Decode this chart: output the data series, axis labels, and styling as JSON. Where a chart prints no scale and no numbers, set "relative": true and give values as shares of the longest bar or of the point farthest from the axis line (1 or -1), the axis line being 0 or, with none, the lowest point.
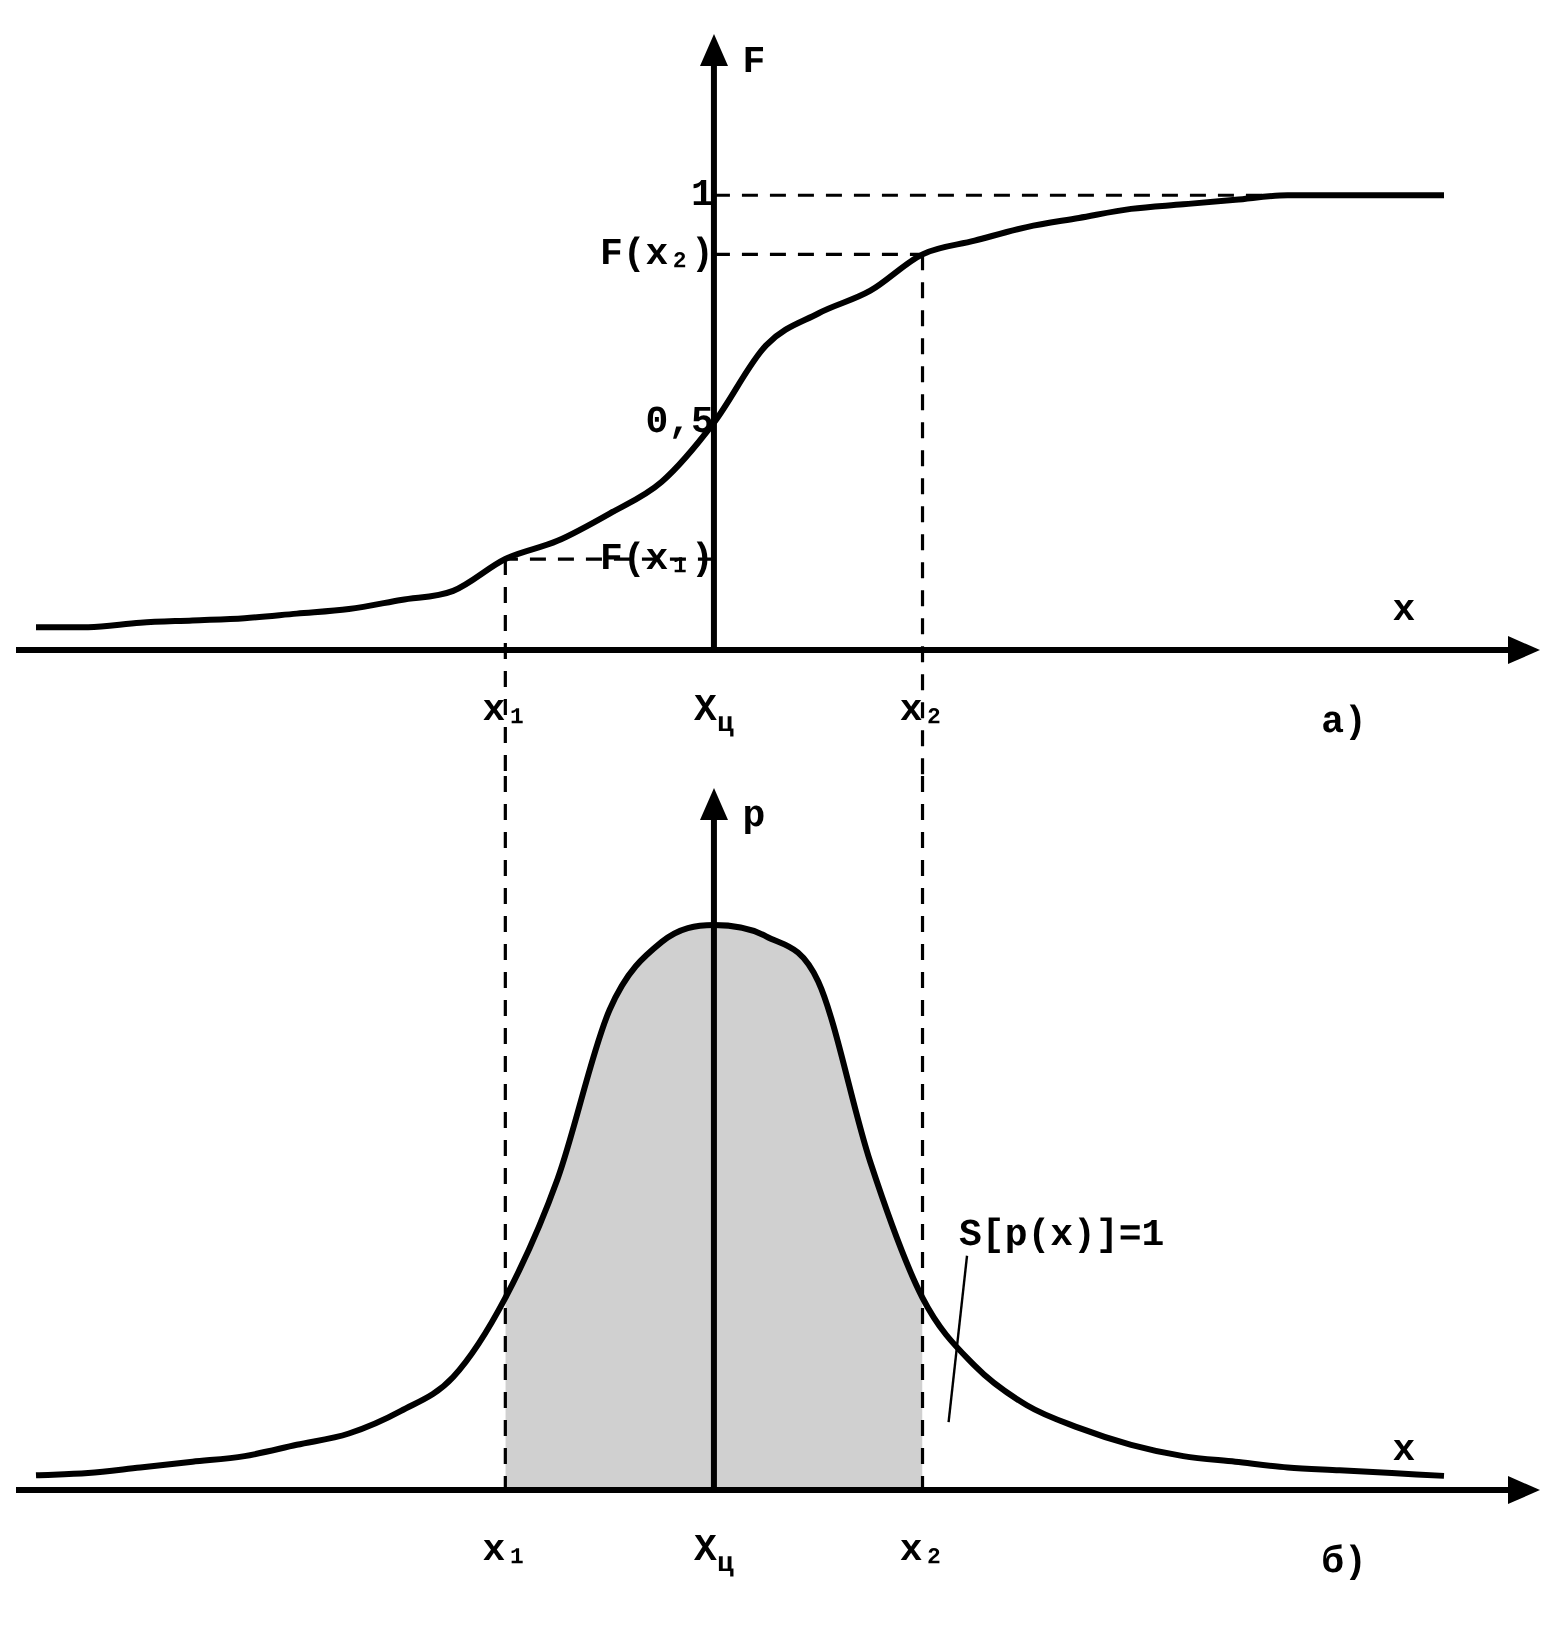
{
  "chart_data": [
    {
      "type": "line",
      "ylabel": "F",
      "xlabel": "x",
      "color": "#000000",
      "categories": [
        null,
        null,
        null,
        null,
        null,
        null,
        null,
        null,
        null,
        "x₁",
        null,
        null,
        null,
        "X$_{ц}$",
        null,
        null,
        null,
        "x₂",
        null,
        null,
        null,
        null,
        null,
        null,
        null,
        null,
        null,
        null
      ],
      "values": [
        0.05,
        0.05,
        0.06,
        0.065,
        0.07,
        0.08,
        0.09,
        0.11,
        0.13,
        0.2,
        0.24,
        0.3,
        0.37,
        0.5,
        0.67,
        0.74,
        0.79,
        0.87,
        0.9,
        0.93,
        0.95,
        0.97,
        0.98,
        0.99,
        1.0,
        1.0,
        1.0,
        1.0
      ],
      "ylim": [
        0,
        1.3
      ],
      "yticks": [
        {
          "value": 0.2,
          "label": "F(x₁)"
        },
        {
          "value": 0.5,
          "label": "0,5"
        },
        {
          "value": 0.87,
          "label": "F(x₂)"
        },
        1
      ],
      "ref_lines": [
        {
          "axis": "y",
          "value": 1,
          "line_style": "dashed"
        },
        {
          "axis": "y",
          "value": 0.87,
          "line_style": "dashed"
        },
        {
          "axis": "y",
          "value": 0.2,
          "line_style": "dashed"
        },
        {
          "axis": "x",
          "value": "x₁",
          "line_style": "dashed"
        },
        {
          "axis": "x",
          "value": "x₂",
          "line_style": "dashed"
        }
      ],
      "annotations": [
        "а)"
      ]
    },
    {
      "type": "line",
      "ylabel": "p",
      "xlabel": "x",
      "relative": true,
      "categories": [
        null,
        null,
        null,
        null,
        null,
        null,
        null,
        null,
        null,
        "x₁",
        null,
        null,
        null,
        "X$_{ц}$",
        null,
        null,
        null,
        "x₂",
        null,
        null,
        null,
        null,
        null,
        null,
        null,
        null,
        null,
        null
      ],
      "series": [
        {
          "color": "#000000",
          "values": [
            0.026,
            0.03,
            0.04,
            0.05,
            0.06,
            0.08,
            0.1,
            0.14,
            0.2,
            0.34,
            0.55,
            0.85,
            0.97,
            1,
            0.98,
            0.9,
            0.58,
            0.34,
            0.22,
            0.15,
            0.11,
            0.08,
            0.06,
            0.05,
            0.04,
            0.035,
            0.03,
            0.025
          ]
        },
        {
          "type": "area",
          "color": "#d0d0d0",
          "values": [
            null,
            null,
            null,
            null,
            null,
            null,
            null,
            null,
            null,
            0.34,
            0.55,
            0.85,
            0.97,
            1,
            0.98,
            0.9,
            0.58,
            0.34,
            null,
            null,
            null,
            null,
            null,
            null,
            null,
            null,
            null,
            null
          ]
        }
      ],
      "ref_lines": [
        {
          "axis": "x",
          "value": "x₁",
          "line_style": "dashed"
        },
        {
          "axis": "x",
          "value": "x₂",
          "line_style": "dashed"
        }
      ],
      "annotations": [
        "б)",
        "S[p(x)]=1"
      ]
    }
  ]
}
